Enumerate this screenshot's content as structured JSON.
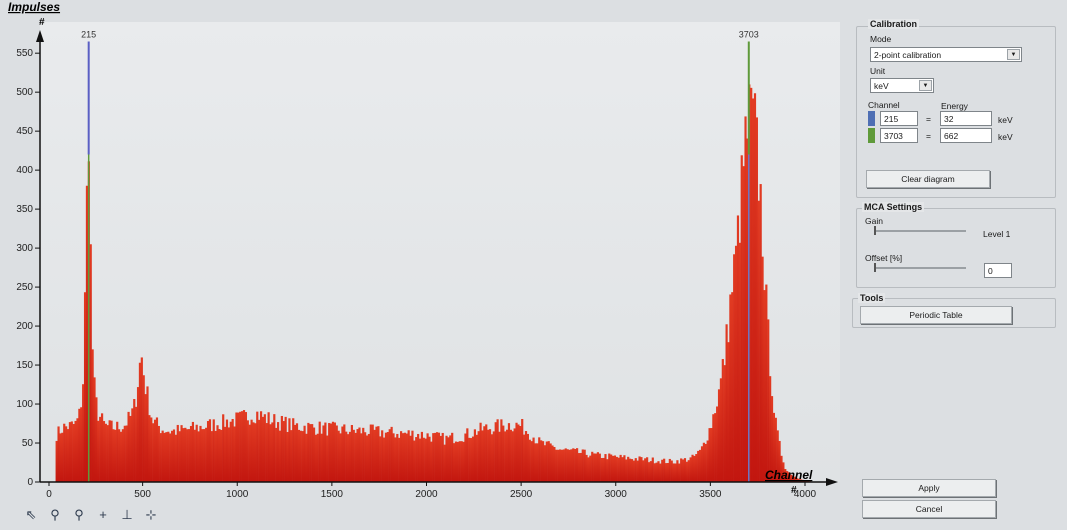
{
  "chart_data": {
    "type": "histogram",
    "ylabel": "Impulses",
    "yunit": "#",
    "xlabel": "Channel",
    "xunit": "#",
    "xlim": [
      0,
      4100
    ],
    "ylim": [
      0,
      590
    ],
    "xticks": [
      0,
      500,
      1000,
      1500,
      2000,
      2500,
      3000,
      3500,
      4000
    ],
    "yticks": [
      0,
      50,
      100,
      150,
      200,
      250,
      300,
      350,
      400,
      450,
      500,
      550
    ],
    "fill_color": "#d4261b",
    "profile": {
      "x": [
        40,
        80,
        120,
        150,
        170,
        185,
        195,
        200,
        205,
        210,
        215,
        220,
        228,
        240,
        260,
        300,
        350,
        400,
        440,
        460,
        480,
        492,
        500,
        510,
        525,
        550,
        600,
        650,
        700,
        800,
        900,
        1000,
        1100,
        1150,
        1200,
        1300,
        1400,
        1500,
        1600,
        1700,
        1800,
        1900,
        2000,
        2100,
        2200,
        2300,
        2400,
        2450,
        2500,
        2550,
        2600,
        2700,
        2800,
        2900,
        3000,
        3100,
        3200,
        3300,
        3400,
        3450,
        3500,
        3550,
        3580,
        3610,
        3640,
        3660,
        3680,
        3700,
        3720,
        3740,
        3760,
        3780,
        3800,
        3820,
        3840,
        3870,
        3900,
        3950,
        4000,
        4050
      ],
      "y": [
        60,
        70,
        72,
        75,
        90,
        130,
        230,
        300,
        360,
        440,
        470,
        390,
        230,
        130,
        90,
        72,
        70,
        72,
        85,
        100,
        140,
        165,
        150,
        130,
        110,
        80,
        68,
        65,
        66,
        70,
        75,
        80,
        88,
        82,
        78,
        72,
        70,
        68,
        66,
        65,
        63,
        62,
        60,
        55,
        60,
        68,
        72,
        74,
        72,
        62,
        50,
        42,
        38,
        34,
        32,
        30,
        28,
        26,
        30,
        40,
        70,
        120,
        170,
        240,
        300,
        360,
        420,
        460,
        470,
        440,
        380,
        300,
        200,
        140,
        80,
        40,
        15,
        6,
        2,
        0
      ]
    },
    "markers": [
      {
        "channel": 215,
        "label": "215",
        "top_color": "#5a5fc4",
        "bottom_color": "#5f9a3a"
      },
      {
        "channel": 3703,
        "label": "3703",
        "top_color": "#5f9a3a",
        "bottom_color": "#6a78c8"
      }
    ]
  },
  "calibration": {
    "title": "Calibration",
    "mode_label": "Mode",
    "mode_value": "2-point calibration",
    "unit_label": "Unit",
    "unit_value": "keV",
    "channel_header": "Channel",
    "energy_header": "Energy",
    "rows": [
      {
        "color": "#4f6fb4",
        "channel": "215",
        "eq": "=",
        "energy": "32",
        "unit": "keV"
      },
      {
        "color": "#5f9a3a",
        "channel": "3703",
        "eq": "=",
        "energy": "662",
        "unit": "keV"
      }
    ],
    "clear_button": "Clear diagram"
  },
  "mca": {
    "title": "MCA Settings",
    "gain_label": "Gain",
    "gain_value": "Level 1",
    "offset_label": "Offset [%]",
    "offset_value": "0"
  },
  "tools": {
    "title": "Tools",
    "periodic_button": "Periodic Table"
  },
  "footer": {
    "apply_button": "Apply",
    "cancel_button": "Cancel"
  },
  "toolbar": {
    "icons": [
      "pointer-icon",
      "zoom-icon",
      "zoom-area-icon",
      "crosshair-icon",
      "grid-icon",
      "marker-icon"
    ],
    "glyphs": [
      "⇖",
      "⚲",
      "⚲",
      "+",
      "⊥",
      "⊹"
    ]
  }
}
